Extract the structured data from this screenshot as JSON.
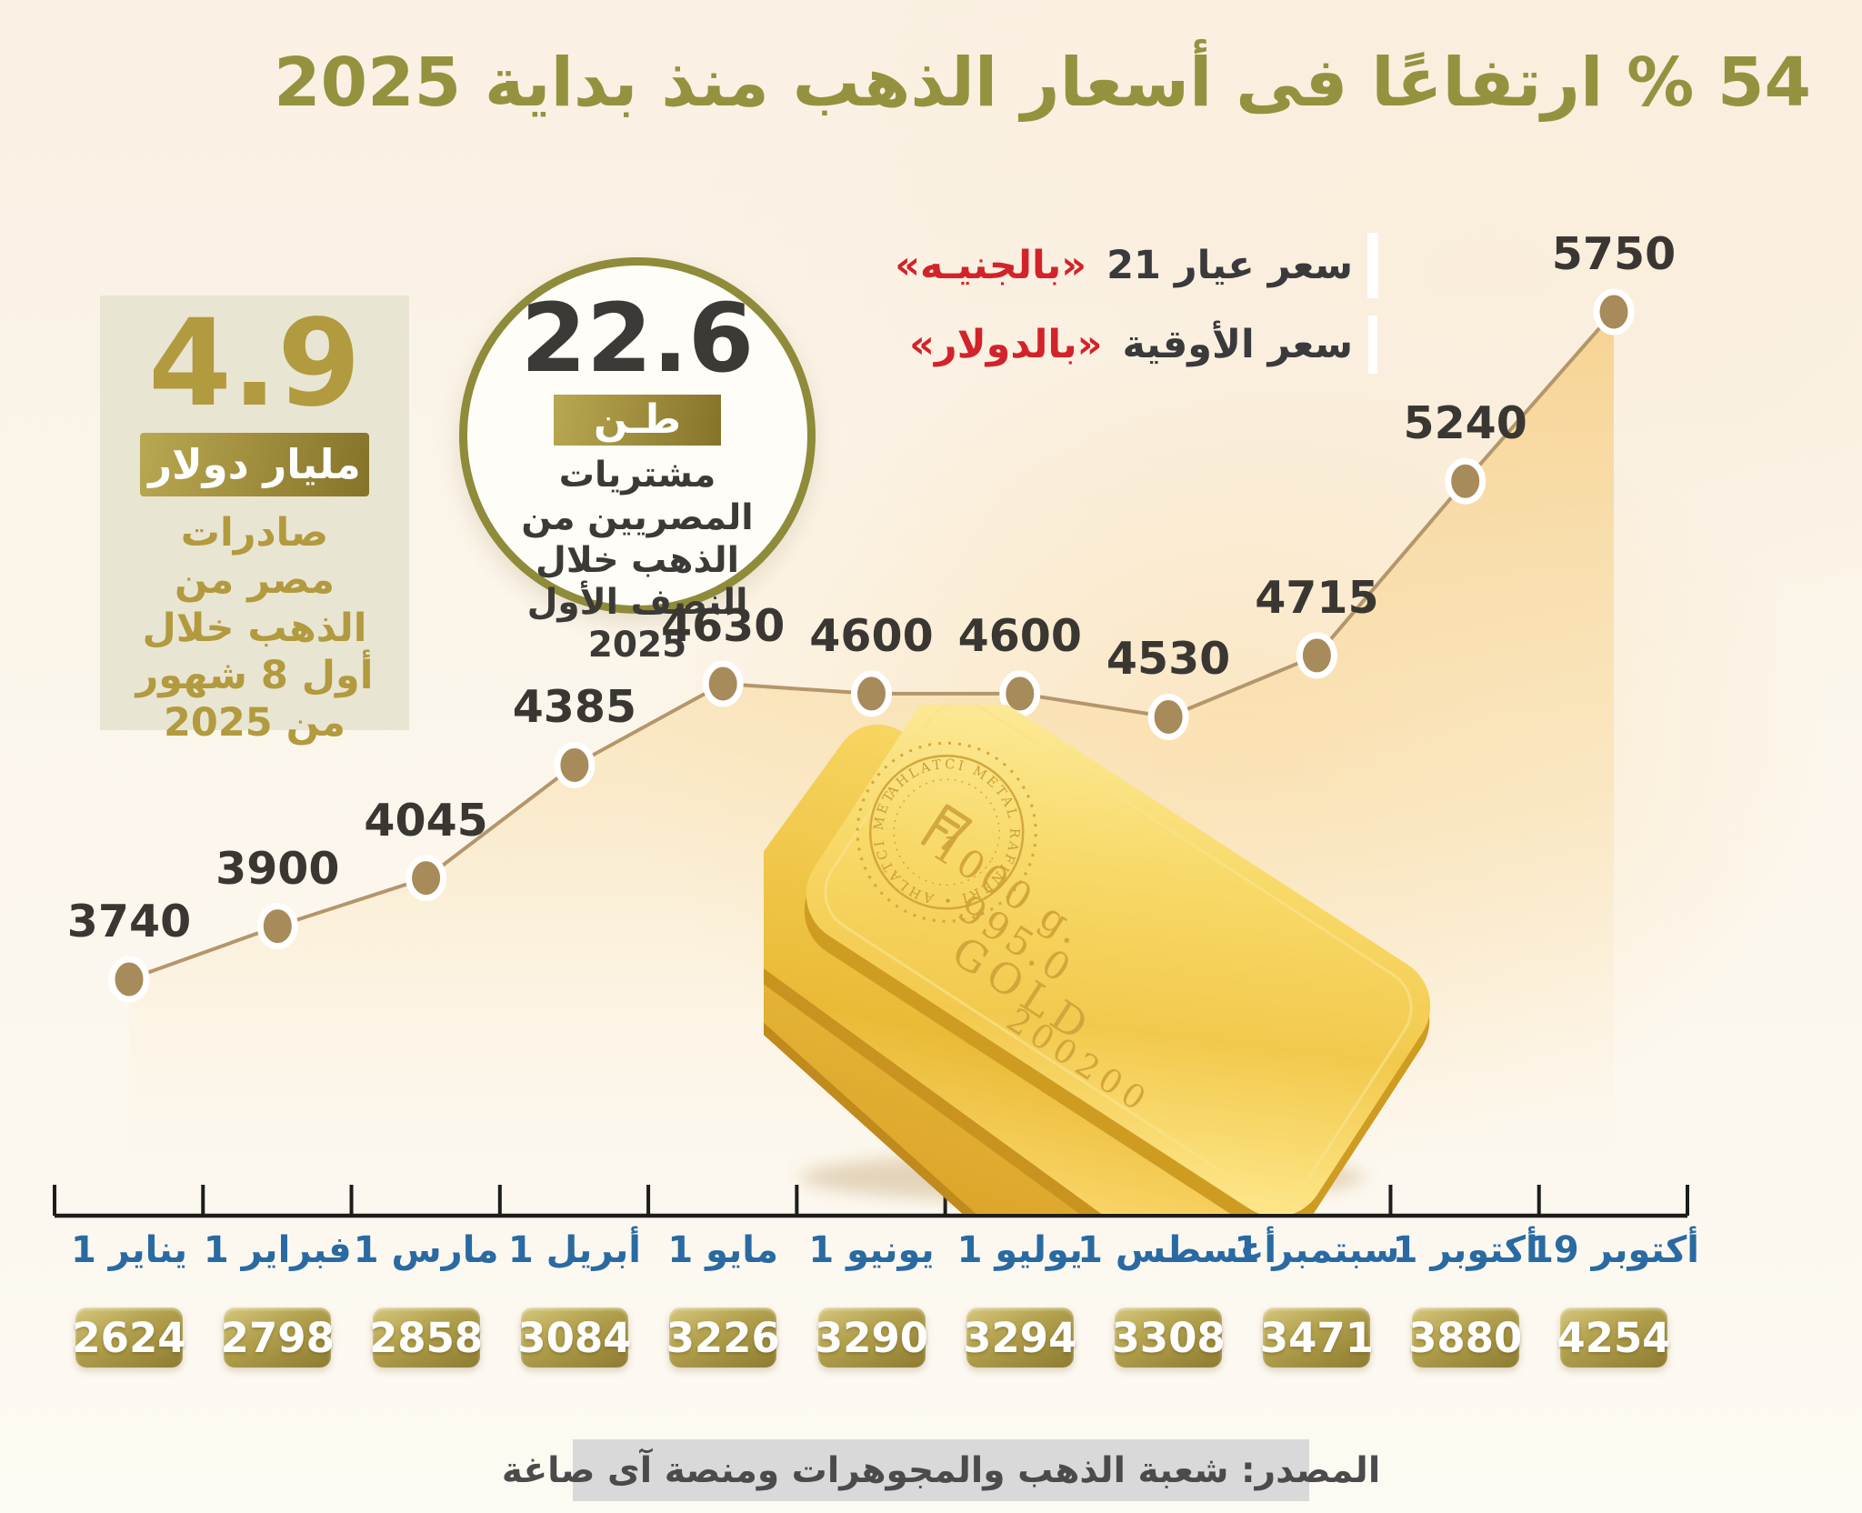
{
  "title": "54 % ارتفاعًا فى أسعار الذهب منذ بداية 2025",
  "legend": {
    "egp_series": {
      "label": "سعر عيار 21",
      "unit": "«بالجنيـه»"
    },
    "usd_series": {
      "label": "سعر الأوقية",
      "unit": "«بالدولار»"
    }
  },
  "export_stat": {
    "value": "4.9",
    "unit": "مليار دولار",
    "description": "صادرات مصر من الذهب خلال أول 8 شهور من 2025"
  },
  "purchases_stat": {
    "value": "22.6",
    "unit": "طـن",
    "description": "مشتريات المصريين من الذهب خلال النصف الأول 2025"
  },
  "chart_data": {
    "type": "line",
    "title": "أسعار الذهب منذ بداية 2025",
    "categories": [
      "1 يناير",
      "1 فبراير",
      "1 مارس",
      "1 أبريل",
      "1 مايو",
      "1 يونيو",
      "1 يوليو",
      "1 أغسطس",
      "1 سبتمبر",
      "1 أكتوبر",
      "19 أكتوبر"
    ],
    "series": [
      {
        "name": "سعر عيار 21 بالجنيه",
        "values": [
          3740,
          3900,
          4045,
          4385,
          4630,
          4600,
          4600,
          4530,
          4715,
          5240,
          5750
        ]
      },
      {
        "name": "سعر الأوقية بالدولار",
        "values": [
          2624,
          2798,
          2858,
          3084,
          3226,
          3290,
          3294,
          3308,
          3471,
          3880,
          4254
        ]
      }
    ],
    "ylim": [
      3600,
      5900
    ],
    "grid": false,
    "legend_position": "top-right",
    "area_fill": true
  },
  "gold_bars": {
    "engravings": [
      "1000 g.",
      "995.0",
      "GOLD",
      "200200"
    ],
    "seal_text": "AHLATCI METAL RAFINERI"
  },
  "source": "المصدر: شعبة الذهب والمجوهرات ومنصة آى صاغة",
  "colors": {
    "title_olive": "#95923f",
    "gold_text": "#b29a3e",
    "date_blue": "#2a6aa2",
    "unit_red": "#d2232a",
    "point_tan": "#a88b5a",
    "line_tan": "#b3966b",
    "badge_gold_dark": "#8d7b31",
    "badge_gold_light": "#d6c77e",
    "source_gray": "#d9d9d9"
  }
}
